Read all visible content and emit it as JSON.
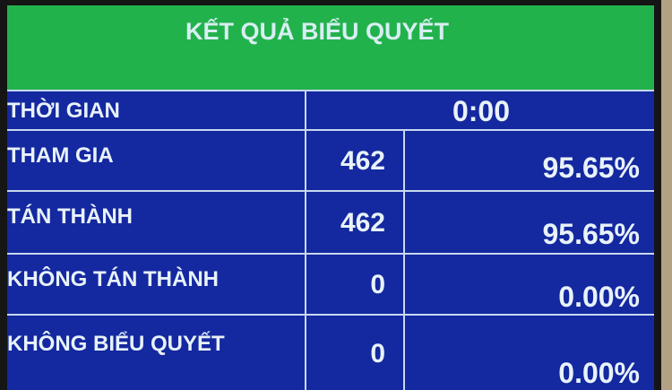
{
  "title": "KẾT QUẢ BIỂU QUYẾT",
  "colors": {
    "header": "#22b24c",
    "panel": "#1428a0",
    "text": "#e8f2f8"
  },
  "time": {
    "label": "THỜI GIAN",
    "value": "0:00"
  },
  "rows": [
    {
      "label": "THAM GIA",
      "count": "462",
      "percent": "95.65%"
    },
    {
      "label": "TÁN THÀNH",
      "count": "462",
      "percent": "95.65%"
    },
    {
      "label": "KHÔNG TÁN THÀNH",
      "count": "0",
      "percent": "0.00%"
    },
    {
      "label": "KHÔNG BIỂU QUYẾT",
      "count": "0",
      "percent": "0.00%"
    }
  ]
}
